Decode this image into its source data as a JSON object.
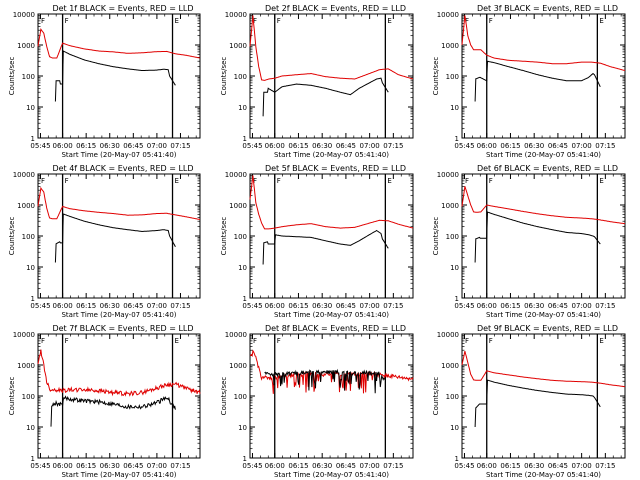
{
  "chart_data": [
    {
      "type": "line",
      "title": "Det 1f BLACK = Events, RED = LLD",
      "xlabel": "Start Time (20-May-07 05:41:40)",
      "ylabel": "Counts/sec",
      "yscale": "log",
      "ylim": [
        1,
        10000
      ],
      "xlim_min": [
        -17,
        95
      ],
      "x_tick_labels": [
        "05:45",
        "06:00",
        "06:15",
        "06:30",
        "06:45",
        "07:00",
        "07:15"
      ],
      "y_tick_labels": [
        "1",
        "10",
        "100",
        "1000",
        "10000"
      ],
      "vertical_markers": [
        0,
        76
      ],
      "marker_labels": [
        "F",
        "F",
        "E"
      ],
      "series": [
        {
          "color": "#e00000",
          "x": [
            -17,
            -15,
            -13,
            -11,
            -9,
            -7,
            -4,
            0,
            5,
            15,
            25,
            35,
            45,
            55,
            65,
            72,
            78,
            85,
            95
          ],
          "y": [
            900,
            3200,
            2400,
            900,
            420,
            380,
            380,
            1150,
            950,
            750,
            640,
            600,
            540,
            560,
            610,
            620,
            520,
            470,
            380
          ]
        },
        {
          "color": "#000000",
          "x": [
            -5,
            -4.8,
            -2,
            -1.5,
            0,
            0.2,
            5,
            15,
            25,
            35,
            45,
            55,
            65,
            70,
            73,
            74,
            78
          ],
          "y": [
            15,
            70,
            70,
            55,
            55,
            650,
            500,
            330,
            250,
            200,
            170,
            150,
            155,
            165,
            160,
            100,
            50
          ]
        }
      ]
    },
    {
      "type": "line",
      "title": "Det 2f BLACK = Events, RED = LLD",
      "xlabel": "Start Time (20-May-07 05:41:40)",
      "ylabel": "Counts/sec",
      "yscale": "log",
      "ylim": [
        1,
        10000
      ],
      "xlim_min": [
        -17,
        95
      ],
      "x_tick_labels": [
        "05:45",
        "06:00",
        "06:15",
        "06:30",
        "06:45",
        "07:00",
        "07:15"
      ],
      "y_tick_labels": [
        "1",
        "10",
        "100",
        "1000",
        "10000"
      ],
      "vertical_markers": [
        0,
        76
      ],
      "marker_labels": [
        "F",
        "F",
        "E"
      ],
      "series": [
        {
          "color": "#e00000",
          "x": [
            -17,
            -15,
            -13,
            -11,
            -9,
            -7,
            -4,
            0,
            5,
            15,
            25,
            35,
            45,
            55,
            65,
            72,
            78,
            85,
            95
          ],
          "y": [
            900,
            9000,
            900,
            200,
            75,
            72,
            80,
            85,
            100,
            110,
            120,
            95,
            85,
            80,
            120,
            160,
            170,
            110,
            80
          ]
        },
        {
          "color": "#000000",
          "x": [
            -8,
            -7.8,
            -5,
            -4.5,
            0,
            5,
            15,
            25,
            35,
            45,
            52,
            58,
            65,
            70,
            73,
            74,
            78
          ],
          "y": [
            5,
            30,
            30,
            40,
            30,
            45,
            55,
            50,
            40,
            30,
            25,
            40,
            60,
            80,
            85,
            60,
            30
          ]
        }
      ]
    },
    {
      "type": "line",
      "title": "Det 3f BLACK = Events, RED = LLD",
      "xlabel": "Start Time (20-May-07 05:41:40)",
      "ylabel": "Counts/sec",
      "yscale": "log",
      "ylim": [
        1,
        10000
      ],
      "xlim_min": [
        -17,
        95
      ],
      "x_tick_labels": [
        "05:45",
        "06:00",
        "06:15",
        "06:30",
        "06:45",
        "07:00",
        "07:15"
      ],
      "y_tick_labels": [
        "1",
        "10",
        "100",
        "1000",
        "10000"
      ],
      "vertical_markers": [
        0,
        76
      ],
      "marker_labels": [
        "F",
        "F",
        "E"
      ],
      "series": [
        {
          "color": "#e00000",
          "x": [
            -17,
            -15,
            -13,
            -11,
            -9,
            -7,
            -4,
            0,
            5,
            15,
            25,
            35,
            45,
            55,
            65,
            72,
            78,
            85,
            95
          ],
          "y": [
            1000,
            9000,
            2000,
            1000,
            700,
            700,
            700,
            470,
            380,
            320,
            300,
            280,
            250,
            250,
            280,
            280,
            260,
            200,
            150
          ]
        },
        {
          "color": "#000000",
          "x": [
            -8,
            -7.8,
            -5,
            -4.5,
            0,
            0.2,
            5,
            15,
            25,
            35,
            45,
            55,
            65,
            70,
            73,
            74,
            78
          ],
          "y": [
            15,
            80,
            90,
            90,
            70,
            300,
            270,
            200,
            150,
            110,
            85,
            70,
            70,
            90,
            120,
            110,
            45
          ]
        }
      ]
    },
    {
      "type": "line",
      "title": "Det 4f BLACK = Events, RED = LLD",
      "xlabel": "Start Time (20-May-07 05:41:40)",
      "ylabel": "Counts/sec",
      "yscale": "log",
      "ylim": [
        1,
        10000
      ],
      "xlim_min": [
        -17,
        95
      ],
      "x_tick_labels": [
        "05:45",
        "06:00",
        "06:15",
        "06:30",
        "06:45",
        "07:00",
        "07:15"
      ],
      "y_tick_labels": [
        "1",
        "10",
        "100",
        "1000",
        "10000"
      ],
      "vertical_markers": [
        0,
        76
      ],
      "marker_labels": [
        "F",
        "F",
        "E"
      ],
      "series": [
        {
          "color": "#e00000",
          "x": [
            -17,
            -15,
            -13,
            -11,
            -9,
            -7,
            -4,
            0,
            5,
            15,
            25,
            35,
            45,
            55,
            65,
            72,
            78,
            85,
            95
          ],
          "y": [
            900,
            3500,
            2600,
            800,
            380,
            360,
            360,
            900,
            760,
            650,
            580,
            530,
            470,
            480,
            530,
            540,
            480,
            420,
            340
          ]
        },
        {
          "color": "#000000",
          "x": [
            -5,
            -4.8,
            -2,
            -1.5,
            0,
            0.2,
            5,
            15,
            25,
            35,
            45,
            55,
            65,
            70,
            73,
            74,
            78
          ],
          "y": [
            14,
            55,
            65,
            60,
            60,
            520,
            430,
            300,
            230,
            185,
            160,
            140,
            150,
            160,
            150,
            100,
            45
          ]
        }
      ]
    },
    {
      "type": "line",
      "title": "Det 5f BLACK = Events, RED = LLD",
      "xlabel": "Start Time (20-May-07 05:41:40)",
      "ylabel": "Counts/sec",
      "yscale": "log",
      "ylim": [
        1,
        10000
      ],
      "xlim_min": [
        -17,
        95
      ],
      "x_tick_labels": [
        "05:45",
        "06:00",
        "06:15",
        "06:30",
        "06:45",
        "07:00",
        "07:15"
      ],
      "y_tick_labels": [
        "1",
        "10",
        "100",
        "1000",
        "10000"
      ],
      "vertical_markers": [
        0,
        76
      ],
      "marker_labels": [
        "F",
        "F",
        "E"
      ],
      "series": [
        {
          "color": "#e00000",
          "x": [
            -17,
            -15,
            -13,
            -11,
            -9,
            -7,
            -4,
            0,
            5,
            15,
            25,
            35,
            45,
            55,
            65,
            72,
            78,
            85,
            95
          ],
          "y": [
            1500,
            9000,
            1200,
            500,
            260,
            170,
            170,
            180,
            200,
            230,
            250,
            200,
            180,
            190,
            260,
            320,
            310,
            240,
            180
          ]
        },
        {
          "color": "#000000",
          "x": [
            -8,
            -7.8,
            -5,
            -4.5,
            0,
            0.2,
            5,
            15,
            25,
            35,
            45,
            52,
            58,
            65,
            70,
            73,
            74,
            78
          ],
          "y": [
            12,
            60,
            65,
            55,
            55,
            110,
            100,
            95,
            90,
            70,
            55,
            50,
            70,
            110,
            150,
            120,
            80,
            40
          ]
        }
      ]
    },
    {
      "type": "line",
      "title": "Det 6f BLACK = Events, RED = LLD",
      "xlabel": "Start Time (20-May-07 05:41:40)",
      "ylabel": "Counts/sec",
      "yscale": "log",
      "ylim": [
        1,
        10000
      ],
      "xlim_min": [
        -17,
        95
      ],
      "x_tick_labels": [
        "05:45",
        "06:00",
        "06:15",
        "06:30",
        "06:45",
        "07:00",
        "07:15"
      ],
      "y_tick_labels": [
        "1",
        "10",
        "100",
        "1000",
        "10000"
      ],
      "vertical_markers": [
        0,
        76
      ],
      "marker_labels": [
        "F",
        "F",
        "E"
      ],
      "series": [
        {
          "color": "#e00000",
          "x": [
            -17,
            -15,
            -13,
            -11,
            -9,
            -7,
            -4,
            0,
            5,
            15,
            25,
            35,
            45,
            55,
            65,
            72,
            78,
            85,
            95
          ],
          "y": [
            900,
            4000,
            2000,
            1000,
            600,
            580,
            600,
            1000,
            900,
            750,
            620,
            520,
            450,
            400,
            380,
            360,
            330,
            290,
            250
          ]
        },
        {
          "color": "#000000",
          "x": [
            -8,
            -7.8,
            -5,
            -4.5,
            0,
            0.2,
            5,
            15,
            25,
            35,
            45,
            55,
            65,
            70,
            73,
            74,
            78
          ],
          "y": [
            14,
            80,
            90,
            85,
            85,
            600,
            500,
            360,
            260,
            200,
            160,
            130,
            120,
            110,
            100,
            95,
            55
          ]
        }
      ]
    },
    {
      "type": "line",
      "title": "Det 7f BLACK = Events, RED = LLD",
      "xlabel": "Start Time (20-May-07 05:41:40)",
      "ylabel": "Counts/sec",
      "yscale": "log",
      "ylim": [
        1,
        10000
      ],
      "xlim_min": [
        -17,
        95
      ],
      "x_tick_labels": [
        "05:45",
        "06:00",
        "06:15",
        "06:30",
        "06:45",
        "07:00",
        "07:15"
      ],
      "y_tick_labels": [
        "1",
        "10",
        "100",
        "1000",
        "10000"
      ],
      "vertical_markers": [
        0,
        76
      ],
      "marker_labels": [
        "F",
        "F",
        "E"
      ],
      "noisy": true,
      "series": [
        {
          "color": "#e00000",
          "x": [
            -17,
            -15,
            -13,
            -11,
            -9,
            -7,
            -4,
            0,
            5,
            15,
            25,
            35,
            45,
            55,
            65,
            72,
            78,
            85,
            95
          ],
          "y": [
            1000,
            3000,
            1000,
            300,
            170,
            160,
            160,
            150,
            160,
            160,
            150,
            130,
            120,
            130,
            180,
            230,
            240,
            180,
            130
          ]
        },
        {
          "color": "#000000",
          "x": [
            -8,
            -7.8,
            -5,
            -4.5,
            0,
            0.2,
            5,
            15,
            25,
            35,
            45,
            55,
            65,
            70,
            73,
            74,
            78
          ],
          "y": [
            12,
            45,
            60,
            60,
            50,
            90,
            80,
            70,
            65,
            55,
            45,
            45,
            60,
            80,
            90,
            70,
            40
          ]
        }
      ]
    },
    {
      "type": "line",
      "title": "Det 8f BLACK = Events, RED = LLD",
      "xlabel": "Start Time (20-May-07 05:41:40)",
      "ylabel": "Counts/sec",
      "yscale": "log",
      "ylim": [
        1,
        10000
      ],
      "xlim_min": [
        -17,
        95
      ],
      "x_tick_labels": [
        "05:45",
        "06:00",
        "06:15",
        "06:30",
        "06:45",
        "07:00",
        "07:15"
      ],
      "y_tick_labels": [
        "1",
        "10",
        "100",
        "1000",
        "10000"
      ],
      "vertical_markers": [
        0,
        76
      ],
      "marker_labels": [
        "F",
        "F",
        "E"
      ],
      "noisy": true,
      "spiky": true,
      "series": [
        {
          "color": "#e00000",
          "x": [
            -17,
            -15,
            -13,
            -11,
            -9,
            -7,
            -4,
            0,
            5,
            15,
            25,
            35,
            45,
            55,
            65,
            72,
            78,
            85,
            95
          ],
          "y": [
            1800,
            2500,
            1800,
            800,
            400,
            400,
            350,
            400,
            450,
            500,
            520,
            500,
            500,
            500,
            520,
            500,
            450,
            400,
            350
          ]
        },
        {
          "color": "#000000",
          "x": [
            -7,
            -5,
            -3,
            0,
            5,
            15,
            25,
            35,
            45,
            55,
            65,
            72,
            76
          ],
          "y": [
            600,
            550,
            500,
            500,
            500,
            550,
            600,
            600,
            580,
            560,
            550,
            550,
            300
          ]
        }
      ]
    },
    {
      "type": "line",
      "title": "Det 9f BLACK = Events, RED = LLD",
      "xlabel": "Start Time (20-May-07 05:41:40)",
      "ylabel": "Counts/sec",
      "yscale": "log",
      "ylim": [
        1,
        10000
      ],
      "xlim_min": [
        -17,
        95
      ],
      "x_tick_labels": [
        "05:45",
        "06:00",
        "06:15",
        "06:30",
        "06:45",
        "07:00",
        "07:15"
      ],
      "y_tick_labels": [
        "1",
        "10",
        "100",
        "1000",
        "10000"
      ],
      "vertical_markers": [
        0,
        76
      ],
      "marker_labels": [
        "F",
        "F",
        "E"
      ],
      "series": [
        {
          "color": "#e00000",
          "x": [
            -17,
            -15,
            -13,
            -11,
            -9,
            -7,
            -4,
            0,
            5,
            15,
            25,
            35,
            45,
            55,
            65,
            72,
            78,
            85,
            95
          ],
          "y": [
            1000,
            2800,
            1200,
            500,
            330,
            320,
            320,
            650,
            560,
            480,
            410,
            360,
            320,
            300,
            290,
            280,
            260,
            230,
            200
          ]
        },
        {
          "color": "#000000",
          "x": [
            -8,
            -7.8,
            -5,
            -4.5,
            0,
            0.2,
            5,
            15,
            25,
            35,
            45,
            55,
            65,
            70,
            73,
            74,
            78
          ],
          "y": [
            10,
            40,
            55,
            55,
            55,
            330,
            280,
            220,
            180,
            150,
            130,
            115,
            110,
            105,
            100,
            90,
            45
          ]
        }
      ]
    }
  ]
}
